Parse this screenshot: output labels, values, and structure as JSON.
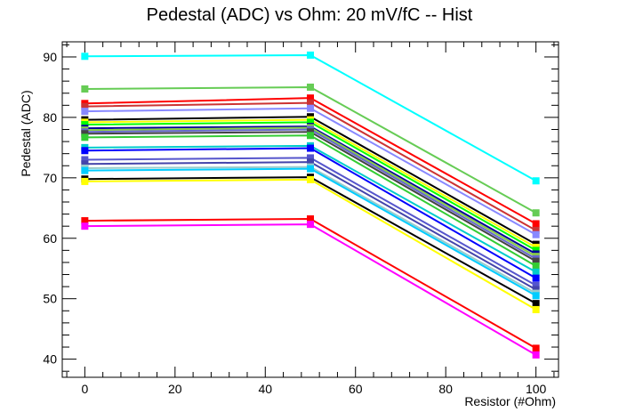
{
  "chart_data": {
    "type": "line",
    "title": "Pedestal (ADC) vs Ohm: 20 mV/fC -- Hist",
    "xlabel": "Resistor (#Ohm)",
    "ylabel": "Pedestal (ADC)",
    "xlim": [
      -5,
      105
    ],
    "ylim": [
      37,
      92.5
    ],
    "x": [
      0,
      50,
      100
    ],
    "x_ticks": [
      0,
      20,
      40,
      60,
      80,
      100
    ],
    "y_ticks": [
      40,
      50,
      60,
      70,
      80,
      90
    ],
    "grid": false,
    "legend": "none",
    "marker": "square",
    "series": [
      {
        "color": "#00ffff",
        "values": [
          90.1,
          90.3,
          69.5
        ]
      },
      {
        "color": "#66cc55",
        "values": [
          84.7,
          85.0,
          64.2
        ]
      },
      {
        "color": "#ff0000",
        "values": [
          82.3,
          83.2,
          62.4
        ]
      },
      {
        "color": "#cc3333",
        "values": [
          81.8,
          82.4,
          61.3
        ]
      },
      {
        "color": "#8888ff",
        "values": [
          81.0,
          81.5,
          60.6
        ]
      },
      {
        "color": "#000000",
        "values": [
          79.6,
          80.1,
          59.0
        ]
      },
      {
        "color": "#ffff00",
        "values": [
          79.2,
          79.6,
          58.5
        ]
      },
      {
        "color": "#00ff00",
        "values": [
          78.8,
          79.2,
          58.0
        ]
      },
      {
        "color": "#000099",
        "values": [
          78.2,
          78.5,
          57.4
        ]
      },
      {
        "color": "#88cc44",
        "values": [
          77.9,
          78.3,
          57.0
        ]
      },
      {
        "color": "#6666cc",
        "values": [
          77.6,
          78.0,
          56.6
        ]
      },
      {
        "color": "#444444",
        "values": [
          77.3,
          77.6,
          56.2
        ]
      },
      {
        "color": "#33cc33",
        "values": [
          76.7,
          77.0,
          55.4
        ]
      },
      {
        "color": "#00cccc",
        "values": [
          75.0,
          75.3,
          54.4
        ]
      },
      {
        "color": "#0000ff",
        "values": [
          74.5,
          74.9,
          53.4
        ]
      },
      {
        "color": "#5555cc",
        "values": [
          73.0,
          73.3,
          52.2
        ]
      },
      {
        "color": "#4444aa",
        "values": [
          72.3,
          72.6,
          51.5
        ]
      },
      {
        "color": "#99cccc",
        "values": [
          71.6,
          71.8,
          50.9
        ]
      },
      {
        "color": "#00ccff",
        "values": [
          71.2,
          71.5,
          50.5
        ]
      },
      {
        "color": "#000000",
        "values": [
          69.8,
          70.1,
          49.2
        ]
      },
      {
        "color": "#ffff00",
        "values": [
          69.4,
          69.7,
          48.2
        ]
      },
      {
        "color": "#ff0000",
        "values": [
          62.9,
          63.2,
          41.8
        ]
      },
      {
        "color": "#ff00ff",
        "values": [
          62.0,
          62.3,
          40.7
        ]
      }
    ]
  }
}
